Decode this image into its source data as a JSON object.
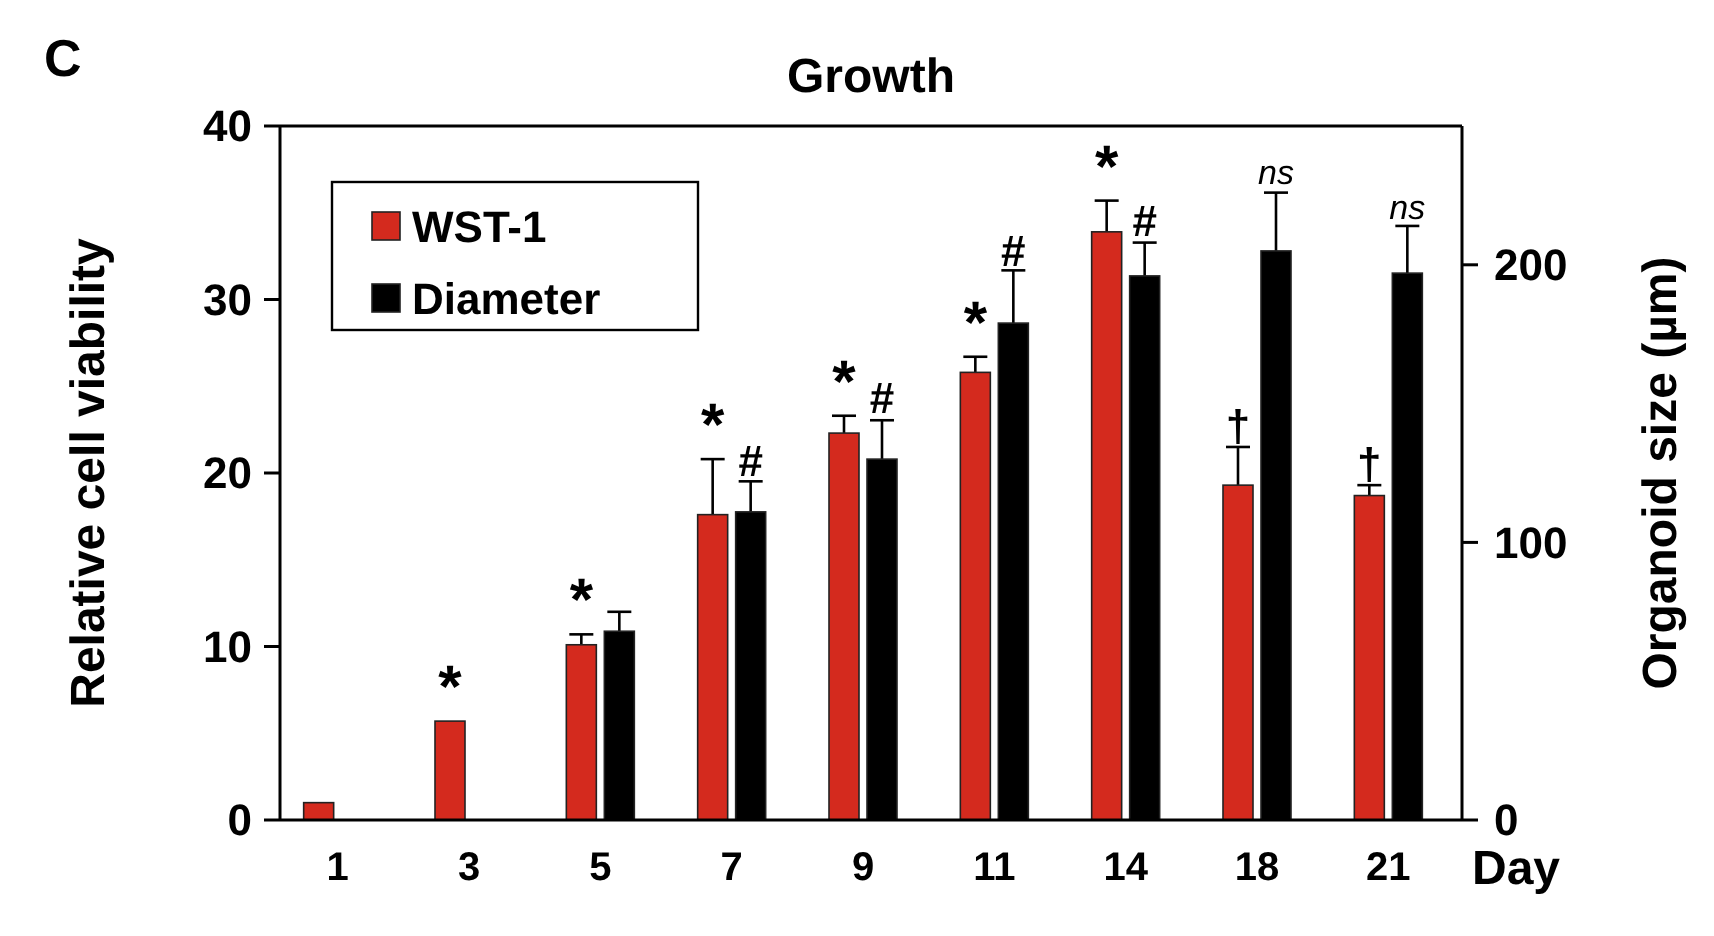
{
  "chart_data": {
    "type": "bar",
    "title": "Growth",
    "xlabel": "Day",
    "ylabel": "Relative cell viability",
    "y2label": "Organoid size (µm)",
    "categories": [
      "1",
      "3",
      "5",
      "7",
      "9",
      "11",
      "14",
      "18",
      "21"
    ],
    "series": [
      {
        "name": "WST-1",
        "color": "#d42a1e",
        "values": [
          1.0,
          5.7,
          10.1,
          17.6,
          22.3,
          25.8,
          33.9,
          19.3,
          18.7
        ],
        "errors": [
          null,
          null,
          0.6,
          3.2,
          1.0,
          0.9,
          1.8,
          2.2,
          0.6
        ]
      },
      {
        "name": "Diameter",
        "color": "#000000",
        "axis": "y2",
        "values": [
          null,
          null,
          68,
          111,
          130,
          179,
          196,
          205,
          197
        ],
        "errors": [
          null,
          null,
          7,
          11,
          14,
          19,
          12,
          21,
          17
        ]
      }
    ],
    "ylim": [
      0,
      40
    ],
    "yticks": [
      0,
      10,
      20,
      30,
      40
    ],
    "y2lim": [
      0,
      250
    ],
    "y2ticks": [
      0,
      100,
      200
    ],
    "legend": "top left",
    "grid": false,
    "annotations": [
      "C",
      {
        "text": "*",
        "x": "3",
        "y": 5.7
      },
      {
        "text": "*",
        "x": "5",
        "y": 10.7
      },
      {
        "text": "*",
        "x": "7",
        "y": 20.8
      },
      {
        "text": "#",
        "x": "7",
        "y": 19.5
      },
      {
        "text": "*",
        "x": "9",
        "y": 23.3
      },
      {
        "text": "#",
        "x": "9",
        "y": 23.1
      },
      {
        "text": "*",
        "x": "11",
        "y": 26.7
      },
      {
        "text": "#",
        "x": "11",
        "y": 31.6
      },
      {
        "text": "*",
        "x": "14",
        "y": 35.7
      },
      {
        "text": "#",
        "x": "14",
        "y": 33.3
      },
      {
        "text": "†",
        "x": "18",
        "y": 21.5
      },
      {
        "text": "ns",
        "x": "18",
        "y": 36.3
      },
      {
        "text": "†",
        "x": "21",
        "y": 19.3
      },
      {
        "text": "ns",
        "x": "21",
        "y": 34.3
      }
    ]
  }
}
